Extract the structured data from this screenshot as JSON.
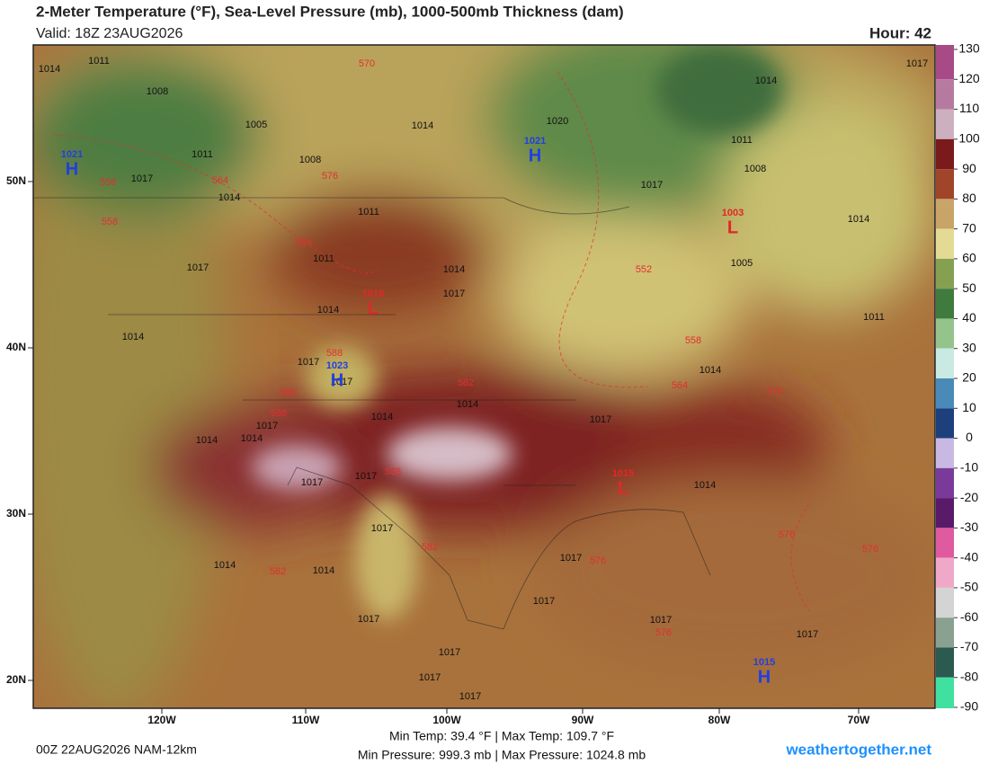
{
  "header": {
    "title": "2-Meter Temperature (°F), Sea-Level Pressure (mb), 1000-500mb Thickness (dam)",
    "valid": "Valid: 18Z 23AUG2026",
    "hour": "Hour: 42"
  },
  "colorbar": {
    "ticks": [
      130,
      120,
      110,
      100,
      90,
      80,
      70,
      60,
      50,
      40,
      30,
      20,
      10,
      0,
      -10,
      -20,
      -30,
      -40,
      -50,
      -60,
      -70,
      -80,
      -90
    ],
    "colors": [
      "#a84a86",
      "#b67aa0",
      "#cdb0bf",
      "#7a1a1a",
      "#a0452a",
      "#c9a468",
      "#e3da94",
      "#86a052",
      "#3f7a3e",
      "#94c48c",
      "#c9eae2",
      "#4a8ab8",
      "#1d3f7c",
      "#c9b9e2",
      "#7a3a9a",
      "#5a1a6a",
      "#e05aa0",
      "#f0a8c8",
      "#d4d4d4",
      "#8aa090",
      "#2a5a50",
      "#40e0a0"
    ]
  },
  "longitude_labels": [
    "120W",
    "110W",
    "100W",
    "90W",
    "80W",
    "70W"
  ],
  "latitude_labels": [
    "50N",
    "40N",
    "30N",
    "20N"
  ],
  "pressure_centers": [
    {
      "letter": "H",
      "value": "1021"
    },
    {
      "letter": "H",
      "value": "1021"
    },
    {
      "letter": "L",
      "value": "1003"
    },
    {
      "letter": "L",
      "value": "1010"
    },
    {
      "letter": "H",
      "value": "1023"
    },
    {
      "letter": "L",
      "value": "1015"
    },
    {
      "letter": "H",
      "value": "1015"
    }
  ],
  "isobar_labels": [
    "1014",
    "1011",
    "1008",
    "1005",
    "1008",
    "1011",
    "1014",
    "1017",
    "1011",
    "1011",
    "1014",
    "1017",
    "1014",
    "1017",
    "1014",
    "1020",
    "1017",
    "1014",
    "1008",
    "1011",
    "1014",
    "1017",
    "1014",
    "1005",
    "1011",
    "1014",
    "1017",
    "1014",
    "1014",
    "1017",
    "1017",
    "1017",
    "1014",
    "1014",
    "1017",
    "1017",
    "1014",
    "1017",
    "1017",
    "1017",
    "1017",
    "1014",
    "1014",
    "1017",
    "1017",
    "1017",
    "1017",
    "1017"
  ],
  "thickness_labels": [
    "570",
    "576",
    "564",
    "558",
    "558",
    "564",
    "552",
    "558",
    "564",
    "570",
    "582",
    "588",
    "588",
    "588",
    "588",
    "582",
    "582",
    "576",
    "576",
    "576",
    "576"
  ],
  "footer": {
    "run": "00Z 22AUG2026 NAM-12km",
    "temp_range": "Min Temp:  39.4 °F | Max Temp: 109.7 °F",
    "pressure_range": "Min Pressure: 999.3 mb | Max Pressure: 1024.8 mb",
    "site": "weathertogether.net"
  }
}
